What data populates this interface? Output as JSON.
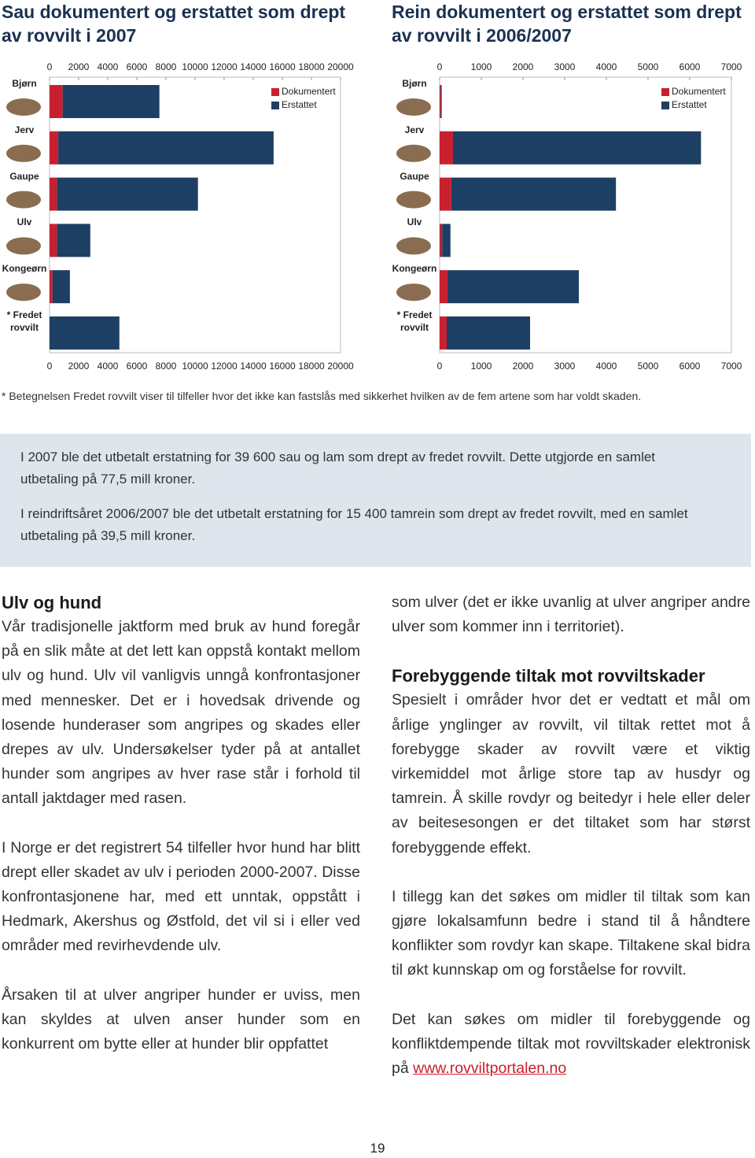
{
  "chart_data": [
    {
      "type": "bar",
      "orientation": "horizontal",
      "stacked": true,
      "title": "Sau dokumentert og erstattet som drept av rovvilt i 2007",
      "categories": [
        "Bjørn",
        "Jerv",
        "Gaupe",
        "Ulv",
        "Kongeørn",
        "* Fredet rovvilt"
      ],
      "series": [
        {
          "name": "Dokumentert",
          "color": "#c8202f",
          "values": [
            900,
            600,
            500,
            500,
            200,
            0
          ]
        },
        {
          "name": "Erstattet",
          "color": "#1d3f63",
          "values": [
            6650,
            14800,
            9700,
            2300,
            1200,
            4800
          ]
        }
      ],
      "xlim": [
        0,
        20000
      ],
      "xticks": [
        0,
        2000,
        4000,
        6000,
        8000,
        10000,
        12000,
        14000,
        16000,
        18000,
        20000
      ]
    },
    {
      "type": "bar",
      "orientation": "horizontal",
      "stacked": true,
      "title": "Rein dokumentert og erstattet som drept av rovvilt i 2006/2007",
      "categories": [
        "Bjørn",
        "Jerv",
        "Gaupe",
        "Ulv",
        "Kongeørn",
        "* Fredet rovvilt"
      ],
      "series": [
        {
          "name": "Dokumentert",
          "color": "#c8202f",
          "values": [
            30,
            320,
            280,
            60,
            190,
            170
          ]
        },
        {
          "name": "Erstattet",
          "color": "#1d3f63",
          "values": [
            20,
            5950,
            3950,
            200,
            3150,
            2000
          ]
        }
      ],
      "xlim": [
        0,
        7000
      ],
      "xticks": [
        0,
        1000,
        2000,
        3000,
        4000,
        5000,
        6000,
        7000
      ]
    }
  ],
  "footnote": "* Betegnelsen Fredet rovvilt viser til tilfeller hvor det ikke kan fastslås med sikkerhet hvilken av de fem artene som har voldt skaden.",
  "info_box": [
    "I 2007 ble det utbetalt erstatning for 39 600 sau og lam som drept av fredet rovvilt. Dette utgjorde en samlet utbetaling på 77,5 mill kroner.",
    "I reindriftsåret 2006/2007 ble det utbetalt erstatning for 15 400 tamrein som drept av fredet rovvilt, med en samlet utbetaling på 39,5 mill kroner."
  ],
  "article": {
    "heading_1": "Ulv og hund",
    "paragraphs_1": [
      "Vår tradisjonelle jaktform med bruk av hund foregår på en slik måte at det lett kan oppstå kontakt mellom ulv og hund. Ulv vil vanligvis unngå konfrontasjoner med mennesker. Det er i hovedsak drivende og losende hunderaser som angripes og skades eller drepes av ulv. Undersøkelser tyder på at antallet hunder som angripes av hver rase står i forhold til antall jaktdager med rasen.",
      "I Norge er det registrert 54 tilfeller hvor hund har blitt drept eller skadet av ulv i perioden 2000-2007. Disse konfrontasjonene har, med ett unntak, oppstått i Hedmark, Akershus og Østfold, det vil si i eller ved områder med revirhevdende ulv.",
      "Årsaken til at ulver angriper hunder er uviss, men kan skyldes at ulven anser hunder som en konkurrent om bytte eller at hunder blir oppfattet",
      "som ulver (det er ikke uvanlig at ulver angriper andre ulver som kommer inn i territoriet)."
    ],
    "heading_2": "Forebyggende tiltak mot rovviltskader",
    "paragraphs_2": [
      "Spesielt i områder hvor det er vedtatt et mål om årlige ynglinger av rovvilt, vil tiltak rettet mot å forebygge skader av rovvilt være et viktig virkemiddel mot årlige store tap av husdyr og tamrein. Å skille rovdyr og beitedyr i hele eller deler av beitesesongen er det tiltaket som har størst forebyggende effekt.",
      "I tillegg kan det søkes om midler til tiltak som kan gjøre lokalsamfunn bedre i stand til å håndtere konflikter som rovdyr kan skape. Tiltakene skal bidra til økt kunnskap om og forståelse for rovvilt."
    ],
    "last_paragraph": "Det kan søkes om midler til forebyggende og konfliktdempende tiltak mot rovviltskader elektronisk på",
    "link": "www.rovviltportalen.no"
  },
  "page_number": "19"
}
